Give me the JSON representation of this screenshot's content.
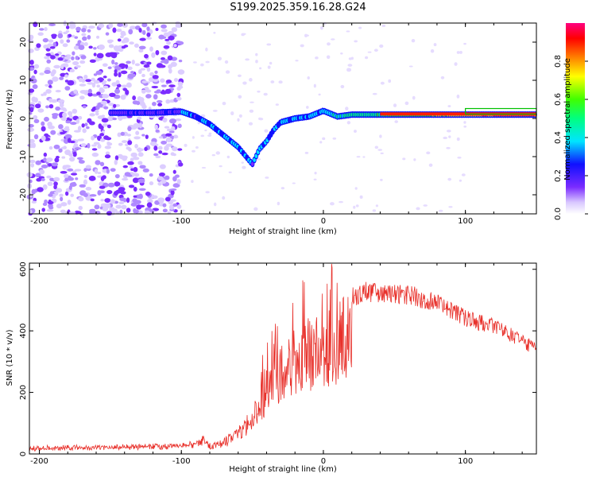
{
  "title": "S199.2025.359.16.28.G24",
  "chart_data": [
    {
      "type": "heatmap",
      "xlabel": "Height of straight line (km)",
      "ylabel": "Frequency (Hz)",
      "xlim": [
        -207,
        150
      ],
      "ylim": [
        -25,
        25
      ],
      "xticks": [
        -200,
        -100,
        0,
        100
      ],
      "yticks": [
        -20,
        -10,
        0,
        10,
        20
      ],
      "colorbar": {
        "label": "Normalized spectral amplitude",
        "range": [
          0,
          1
        ],
        "ticks": [
          "0.0",
          "0.2",
          "0.4",
          "0.6",
          "0.8"
        ]
      },
      "ridge": {
        "x": [
          -150,
          -120,
          -100,
          -90,
          -80,
          -70,
          -60,
          -50,
          -45,
          -40,
          -35,
          -30,
          -25,
          -20,
          -10,
          0,
          10,
          20,
          40,
          60,
          80,
          100,
          150
        ],
        "y": [
          1.5,
          1.5,
          1.8,
          0.5,
          -1.5,
          -4.5,
          -7.5,
          -12,
          -8,
          -6,
          -3,
          -1,
          -0.5,
          0,
          0.5,
          2,
          0.5,
          1,
          1,
          1,
          1,
          1,
          1
        ]
      },
      "noise_region_x": [
        -207,
        -100
      ]
    },
    {
      "type": "line",
      "xlabel": "Height of straight line (km)",
      "ylabel": "SNR (10 * v/v)",
      "xlim": [
        -207,
        150
      ],
      "ylim": [
        0,
        620
      ],
      "xticks": [
        -200,
        -100,
        0,
        100
      ],
      "yticks": [
        0,
        200,
        400,
        600
      ],
      "series": [
        {
          "name": "SNR",
          "color": "#e8302a",
          "envelope_x": [
            -207,
            -150,
            -100,
            -90,
            -85,
            -80,
            -70,
            -60,
            -50,
            -40,
            -30,
            -20,
            -10,
            0,
            10,
            20,
            30,
            40,
            60,
            80,
            100,
            120,
            140,
            150
          ],
          "envelope_y": [
            20,
            25,
            30,
            35,
            60,
            30,
            50,
            80,
            150,
            300,
            350,
            420,
            450,
            480,
            500,
            540,
            560,
            560,
            550,
            520,
            470,
            440,
            390,
            360
          ]
        }
      ]
    }
  ]
}
